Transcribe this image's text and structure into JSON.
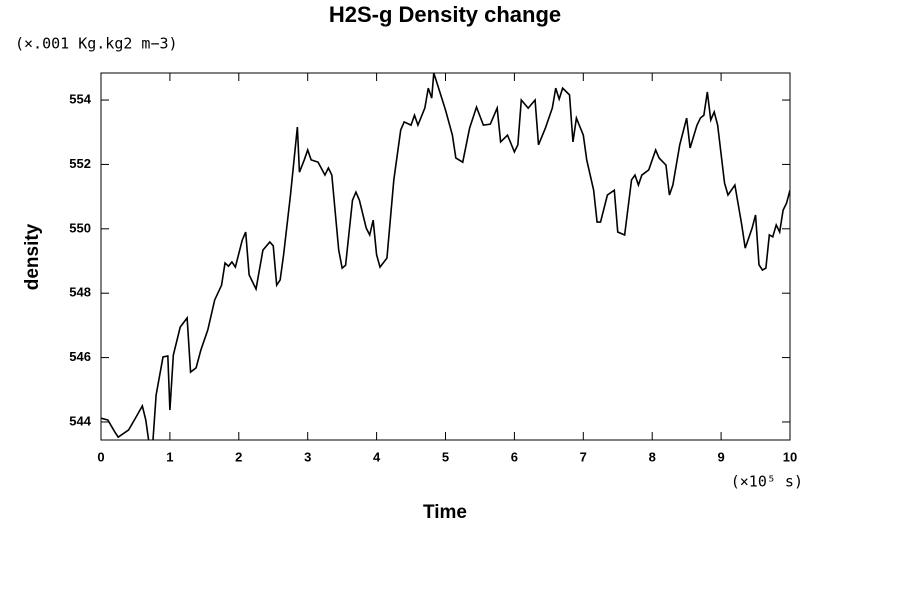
{
  "chart_data": {
    "type": "line",
    "title": "H2S-g Density change",
    "y_unit_label": "(×.001 Kg.kg2 m−3)",
    "x_unit_label": "(×10⁵ s)",
    "xlabel": "Time",
    "ylabel": "density",
    "xlim": [
      0,
      10
    ],
    "xticks": [
      0,
      1,
      2,
      3,
      4,
      5,
      6,
      7,
      8,
      9,
      10
    ],
    "ylim": [
      543.44,
      554.84
    ],
    "yticks": [
      544,
      546,
      548,
      550,
      552,
      554
    ],
    "series": [
      {
        "name": "H2S-g",
        "color": "#000000",
        "x": [
          0,
          0.1,
          0.2,
          0.25,
          0.4,
          0.5,
          0.6,
          0.65,
          0.7,
          0.75,
          0.8,
          0.9,
          0.97,
          1.0,
          1.05,
          1.15,
          1.25,
          1.3,
          1.38,
          1.45,
          1.55,
          1.65,
          1.75,
          1.8,
          1.85,
          1.9,
          1.95,
          2.05,
          2.1,
          2.15,
          2.25,
          2.35,
          2.45,
          2.5,
          2.55,
          2.6,
          2.65,
          2.75,
          2.85,
          2.88,
          2.95,
          3.0,
          3.05,
          3.15,
          3.25,
          3.3,
          3.35,
          3.45,
          3.5,
          3.55,
          3.65,
          3.7,
          3.75,
          3.85,
          3.9,
          3.95,
          4.0,
          4.05,
          4.15,
          4.25,
          4.35,
          4.4,
          4.5,
          4.55,
          4.6,
          4.7,
          4.75,
          4.8,
          4.83,
          4.9,
          5.0,
          5.1,
          5.15,
          5.25,
          5.35,
          5.45,
          5.55,
          5.65,
          5.75,
          5.8,
          5.9,
          6.0,
          6.05,
          6.1,
          6.2,
          6.3,
          6.35,
          6.45,
          6.55,
          6.6,
          6.65,
          6.7,
          6.8,
          6.85,
          6.9,
          7.0,
          7.05,
          7.15,
          7.2,
          7.25,
          7.35,
          7.45,
          7.5,
          7.6,
          7.7,
          7.75,
          7.8,
          7.85,
          7.95,
          8.05,
          8.1,
          8.2,
          8.25,
          8.3,
          8.4,
          8.5,
          8.55,
          8.65,
          8.7,
          8.75,
          8.8,
          8.85,
          8.9,
          8.95,
          9.05,
          9.1,
          9.2,
          9.3,
          9.35,
          9.45,
          9.5,
          9.55,
          9.6,
          9.65,
          9.7,
          9.75,
          9.8,
          9.85,
          9.9,
          9.95,
          10.0
        ],
        "values": [
          544.12,
          544.06,
          543.69,
          543.53,
          543.75,
          544.12,
          544.5,
          544.06,
          543.3,
          543.3,
          544.84,
          546.02,
          546.05,
          544.37,
          546.08,
          546.95,
          547.23,
          545.55,
          545.68,
          546.24,
          546.86,
          547.79,
          548.25,
          548.94,
          548.84,
          548.97,
          548.81,
          549.65,
          549.9,
          548.57,
          548.13,
          549.34,
          549.59,
          549.47,
          548.25,
          548.41,
          549.19,
          551.05,
          553.16,
          551.76,
          552.14,
          552.45,
          552.14,
          552.07,
          551.67,
          551.89,
          551.67,
          549.34,
          548.78,
          548.87,
          550.89,
          551.14,
          550.89,
          550.02,
          549.81,
          550.27,
          549.19,
          548.81,
          549.09,
          551.52,
          553.07,
          553.32,
          553.22,
          553.53,
          553.22,
          553.75,
          554.37,
          554.06,
          554.84,
          554.37,
          553.69,
          552.91,
          552.2,
          552.07,
          553.13,
          553.78,
          553.22,
          553.25,
          553.75,
          552.7,
          552.91,
          552.39,
          552.61,
          554.0,
          553.75,
          554.0,
          552.61,
          553.13,
          553.75,
          554.37,
          554.03,
          554.37,
          554.16,
          552.7,
          553.44,
          552.91,
          552.14,
          551.2,
          550.21,
          550.21,
          551.05,
          551.2,
          549.9,
          549.81,
          551.52,
          551.67,
          551.36,
          551.67,
          551.83,
          552.45,
          552.2,
          551.98,
          551.05,
          551.36,
          552.61,
          553.44,
          552.51,
          553.22,
          553.44,
          553.53,
          554.25,
          553.38,
          553.63,
          553.22,
          551.42,
          551.05,
          551.36,
          550.12,
          549.4,
          550.02,
          550.43,
          548.88,
          548.72,
          548.78,
          549.81,
          549.75,
          550.12,
          549.9,
          550.58,
          550.8,
          551.2
        ]
      }
    ]
  }
}
